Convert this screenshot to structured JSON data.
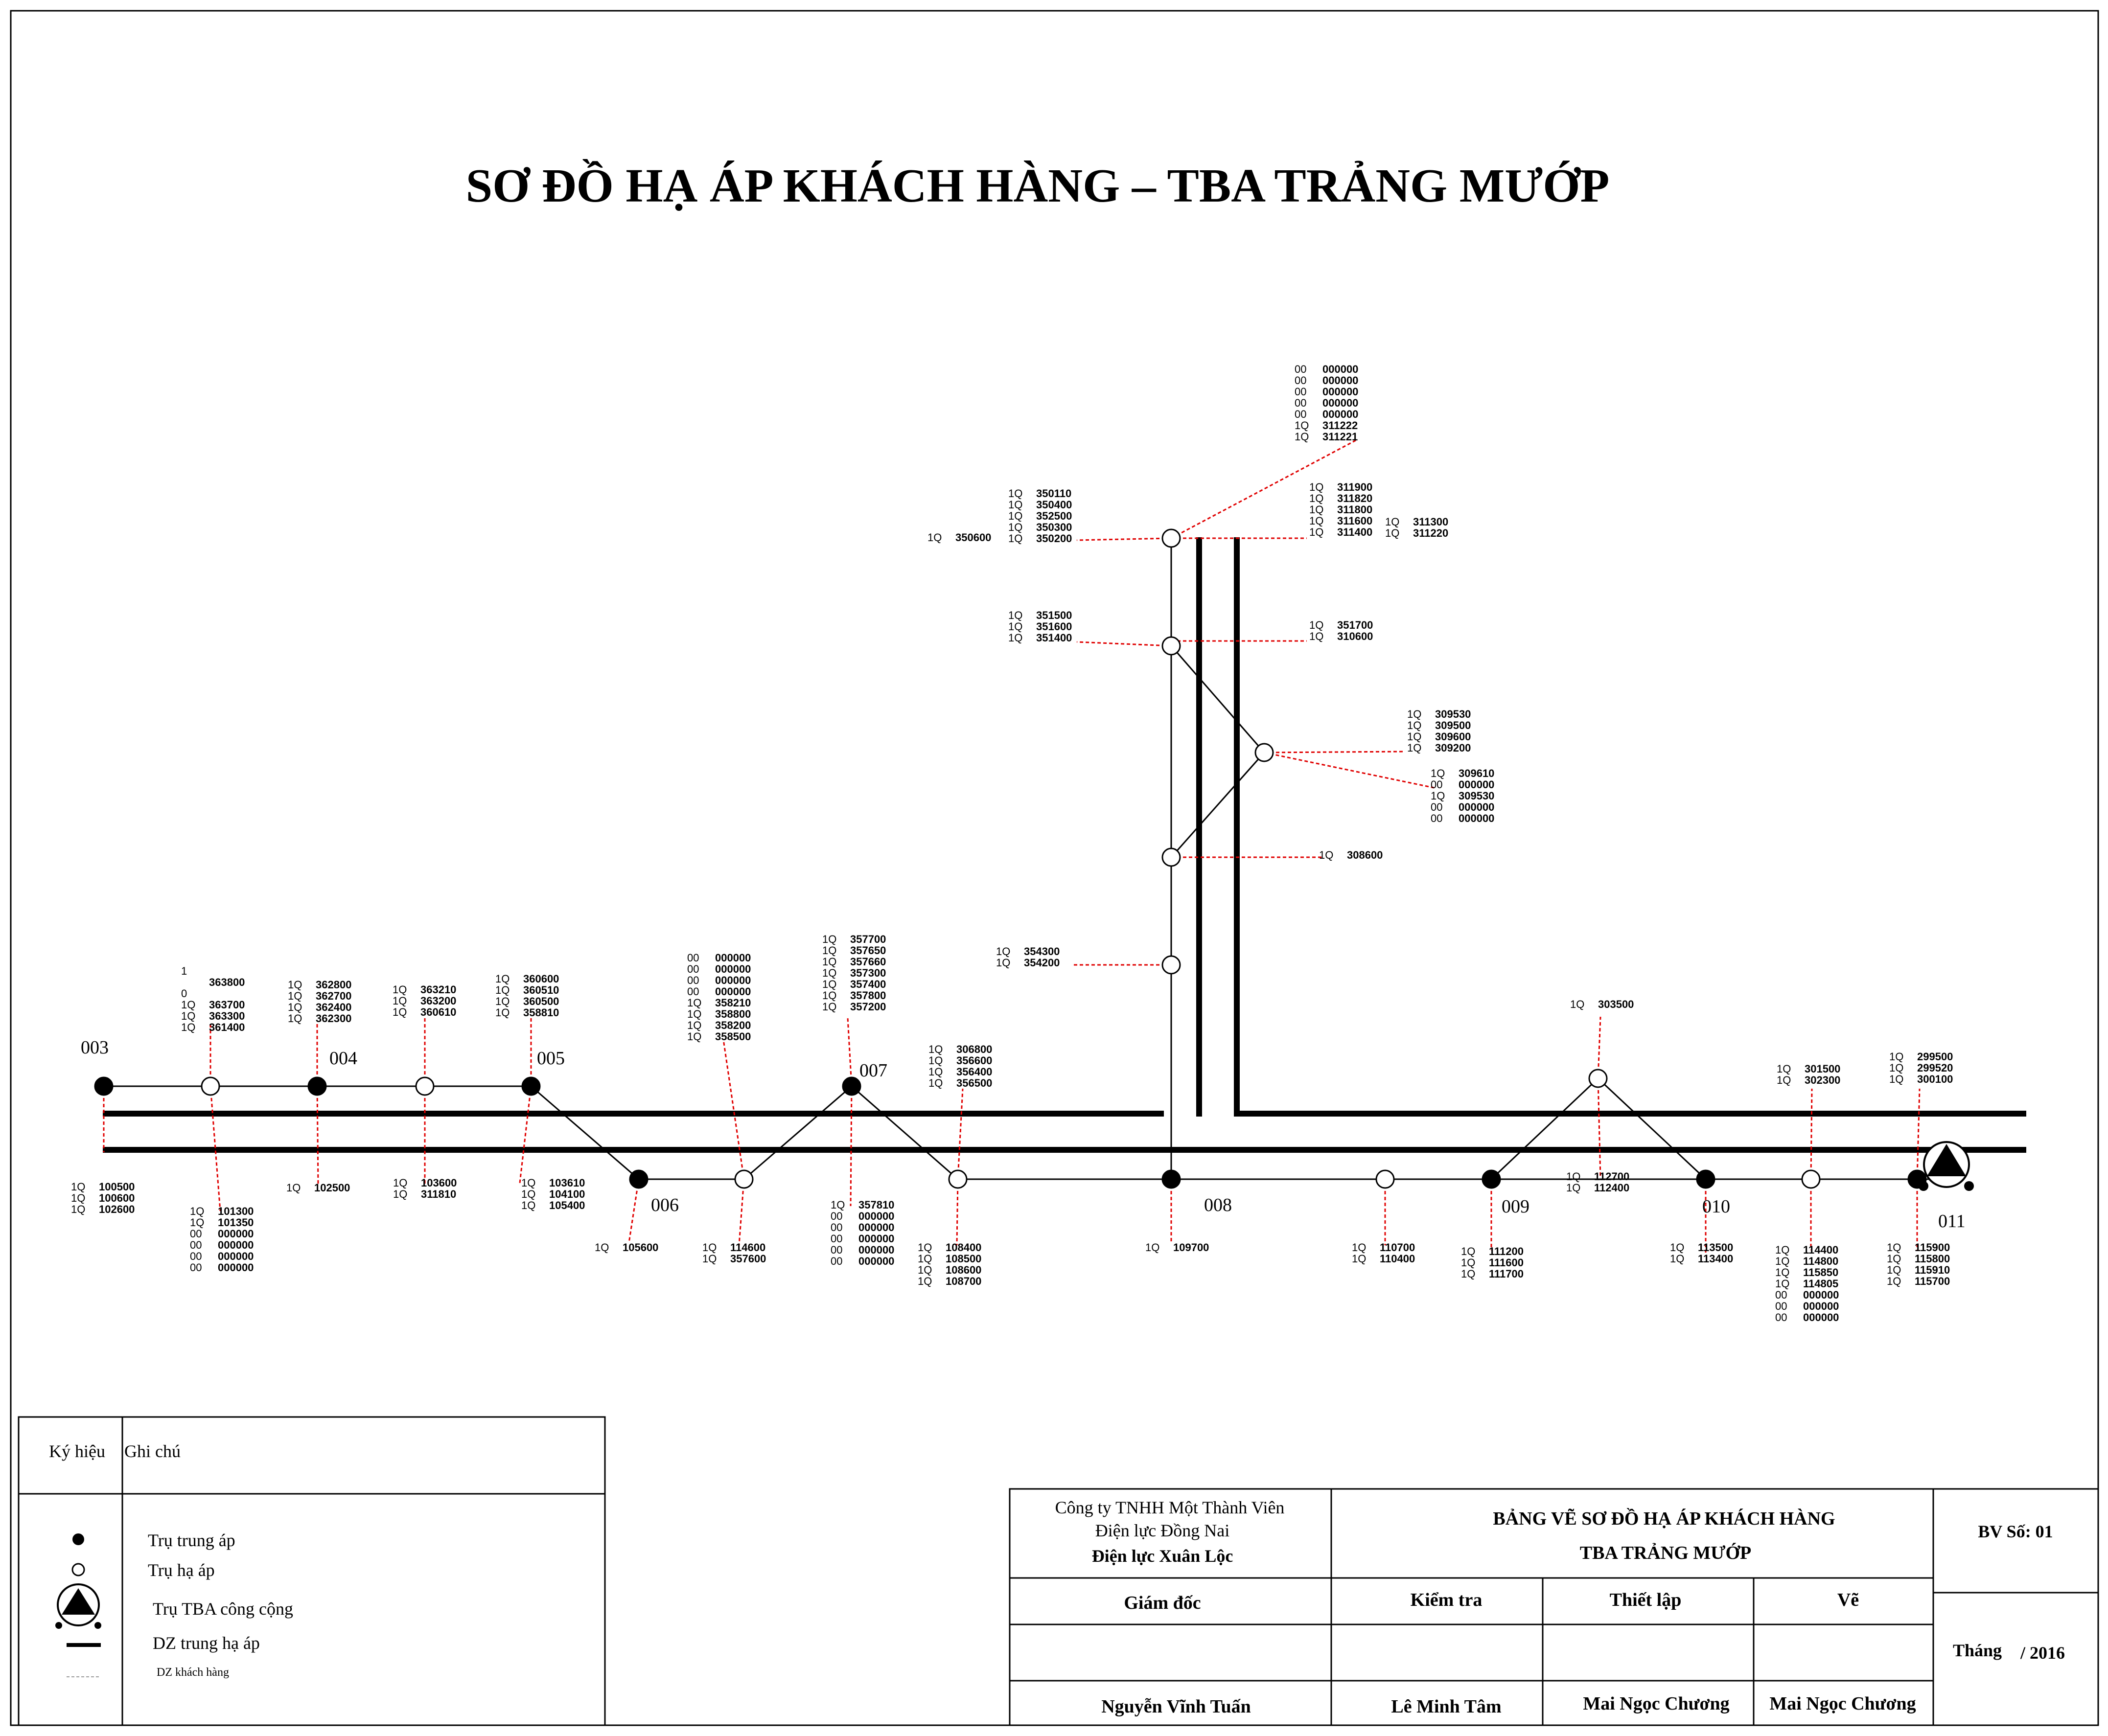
{
  "title": "SƠ ĐỒ HẠ ÁP KHÁCH HÀNG – TBA TRẢNG MƯỚP",
  "pole_labels": [
    "003",
    "004",
    "005",
    "006",
    "007",
    "008",
    "009",
    "010",
    "011"
  ],
  "customer_groups": [
    {
      "rows": [
        [
          "1",
          ""
        ],
        [
          "",
          "363800"
        ],
        [
          "0",
          ""
        ],
        [
          "1Q",
          "363700"
        ],
        [
          "1Q",
          "363300"
        ],
        [
          "1Q",
          "361400"
        ]
      ]
    },
    {
      "rows": [
        [
          "1Q",
          "362800"
        ],
        [
          "1Q",
          "362700"
        ],
        [
          "1Q",
          "362400"
        ],
        [
          "1Q",
          "362300"
        ]
      ]
    },
    {
      "rows": [
        [
          "1Q",
          "363210"
        ],
        [
          "1Q",
          "363200"
        ],
        [
          "1Q",
          "360610"
        ]
      ]
    },
    {
      "rows": [
        [
          "1Q",
          "360600"
        ],
        [
          "1Q",
          "360510"
        ],
        [
          "1Q",
          "360500"
        ],
        [
          "1Q",
          "358810"
        ]
      ]
    },
    {
      "rows": [
        [
          "00",
          "000000"
        ],
        [
          "00",
          "000000"
        ],
        [
          "00",
          "000000"
        ],
        [
          "00",
          "000000"
        ],
        [
          "1Q",
          "358210"
        ],
        [
          "1Q",
          "358800"
        ],
        [
          "1Q",
          "358200"
        ],
        [
          "1Q",
          "358500"
        ]
      ]
    },
    {
      "rows": [
        [
          "1Q",
          "357700"
        ],
        [
          "1Q",
          "357650"
        ],
        [
          "1Q",
          "357660"
        ],
        [
          "1Q",
          "357300"
        ],
        [
          "1Q",
          "357400"
        ],
        [
          "1Q",
          "357800"
        ],
        [
          "1Q",
          "357200"
        ]
      ]
    },
    {
      "rows": [
        [
          "1Q",
          "306800"
        ],
        [
          "1Q",
          "356600"
        ],
        [
          "1Q",
          "356400"
        ],
        [
          "1Q",
          "356500"
        ]
      ]
    },
    {
      "rows": [
        [
          "1Q",
          "354300"
        ],
        [
          "1Q",
          "354200"
        ]
      ]
    },
    {
      "rows": [
        [
          "1Q",
          "351500"
        ],
        [
          "1Q",
          "351600"
        ],
        [
          "1Q",
          "351400"
        ]
      ]
    },
    {
      "rows": [
        [
          "1Q",
          "350110"
        ],
        [
          "1Q",
          "350400"
        ],
        [
          "1Q",
          "352500"
        ],
        [
          "1Q",
          "350300"
        ],
        [
          "1Q",
          "350200"
        ]
      ]
    },
    {
      "rows": [
        [
          "1Q",
          "350600"
        ]
      ]
    },
    {
      "rows": [
        [
          "00",
          "000000"
        ],
        [
          "00",
          "000000"
        ],
        [
          "00",
          "000000"
        ],
        [
          "00",
          "000000"
        ],
        [
          "00",
          "000000"
        ],
        [
          "1Q",
          "311222"
        ],
        [
          "1Q",
          "311221"
        ]
      ]
    },
    {
      "rows": [
        [
          "1Q",
          "311900"
        ],
        [
          "1Q",
          "311820"
        ],
        [
          "1Q",
          "311800"
        ],
        [
          "1Q",
          "311600"
        ],
        [
          "1Q",
          "311400"
        ]
      ]
    },
    {
      "rows": [
        [
          "1Q",
          "311300"
        ],
        [
          "1Q",
          "311220"
        ]
      ]
    },
    {
      "rows": [
        [
          "1Q",
          "351700"
        ],
        [
          "1Q",
          "310600"
        ]
      ]
    },
    {
      "rows": [
        [
          "1Q",
          "309530"
        ],
        [
          "1Q",
          "309500"
        ],
        [
          "1Q",
          "309600"
        ],
        [
          "1Q",
          "309200"
        ]
      ]
    },
    {
      "rows": [
        [
          "1Q",
          "309610"
        ],
        [
          "00",
          "000000"
        ],
        [
          "1Q",
          "309530"
        ],
        [
          "00",
          "000000"
        ],
        [
          "00",
          "000000"
        ]
      ]
    },
    {
      "rows": [
        [
          "1Q",
          "308600"
        ]
      ]
    },
    {
      "rows": [
        [
          "1Q",
          "303500"
        ]
      ]
    },
    {
      "rows": [
        [
          "1Q",
          "301500"
        ],
        [
          "1Q",
          "302300"
        ]
      ]
    },
    {
      "rows": [
        [
          "1Q",
          "299500"
        ],
        [
          "1Q",
          "299520"
        ],
        [
          "1Q",
          "300100"
        ]
      ]
    },
    {
      "rows": [
        [
          "1Q",
          "100500"
        ],
        [
          "1Q",
          "100600"
        ],
        [
          "1Q",
          "102600"
        ]
      ]
    },
    {
      "rows": [
        [
          "1Q",
          "101300"
        ],
        [
          "1Q",
          "101350"
        ],
        [
          "00",
          "000000"
        ],
        [
          "00",
          "000000"
        ],
        [
          "00",
          "000000"
        ],
        [
          "00",
          "000000"
        ]
      ]
    },
    {
      "rows": [
        [
          "1Q",
          "102500"
        ]
      ]
    },
    {
      "rows": [
        [
          "1Q",
          "103600"
        ],
        [
          "1Q",
          "311810"
        ]
      ]
    },
    {
      "rows": [
        [
          "1Q",
          "103610"
        ],
        [
          "1Q",
          "104100"
        ],
        [
          "1Q",
          "105400"
        ]
      ]
    },
    {
      "rows": [
        [
          "1Q",
          "105600"
        ]
      ]
    },
    {
      "rows": [
        [
          "1Q",
          "114600"
        ],
        [
          "1Q",
          "357600"
        ]
      ]
    },
    {
      "rows": [
        [
          "1Q",
          "357810"
        ],
        [
          "00",
          "000000"
        ],
        [
          "00",
          "000000"
        ],
        [
          "00",
          "000000"
        ],
        [
          "00",
          "000000"
        ],
        [
          "00",
          "000000"
        ]
      ]
    },
    {
      "rows": [
        [
          "1Q",
          "108400"
        ],
        [
          "1Q",
          "108500"
        ],
        [
          "1Q",
          "108600"
        ],
        [
          "1Q",
          "108700"
        ]
      ]
    },
    {
      "rows": [
        [
          "1Q",
          "109700"
        ]
      ]
    },
    {
      "rows": [
        [
          "1Q",
          "110700"
        ],
        [
          "1Q",
          "110400"
        ]
      ]
    },
    {
      "rows": [
        [
          "1Q",
          "111200"
        ],
        [
          "1Q",
          "111600"
        ],
        [
          "1Q",
          "111700"
        ]
      ]
    },
    {
      "rows": [
        [
          "1Q",
          "112700"
        ],
        [
          "1Q",
          "112400"
        ]
      ]
    },
    {
      "rows": [
        [
          "1Q",
          "113500"
        ],
        [
          "1Q",
          "113400"
        ]
      ]
    },
    {
      "rows": [
        [
          "1Q",
          "114400"
        ],
        [
          "1Q",
          "114800"
        ],
        [
          "1Q",
          "115850"
        ],
        [
          "1Q",
          "114805"
        ],
        [
          "00",
          "000000"
        ],
        [
          "00",
          "000000"
        ],
        [
          "00",
          "000000"
        ]
      ]
    },
    {
      "rows": [
        [
          "1Q",
          "115900"
        ],
        [
          "1Q",
          "115800"
        ],
        [
          "1Q",
          "115910"
        ],
        [
          "1Q",
          "115700"
        ]
      ]
    }
  ],
  "legend": {
    "header_symbol": "Ký hiệu",
    "header_note": "Ghi chú",
    "items": [
      "Trụ trung áp",
      "Trụ hạ áp",
      "Trụ TBA công cộng",
      "DZ trung hạ áp",
      "DZ khách hàng"
    ]
  },
  "title_block": {
    "company_line1": "Công ty TNHH Một Thành Viên",
    "company_line2": "Điện lực Đồng Nai",
    "company_line3": "Điện lực Xuân Lộc",
    "drawing_line1": "BẢNG VẼ SƠ ĐỒ HẠ ÁP KHÁCH HÀNG",
    "drawing_line2": "TBA TRẢNG MƯỚP",
    "sheet_no": "BV Số: 01",
    "role_director": "Giám đốc",
    "role_check": "Kiểm tra",
    "role_setup": "Thiết lập",
    "role_draw": "Vẽ",
    "month_label": "Tháng",
    "year_label": "/ 2016",
    "name_director": "Nguyễn Vĩnh Tuấn",
    "name_check": "Lê Minh Tâm",
    "name_setup": "Mai Ngọc Chương",
    "name_draw": "Mai Ngọc Chương"
  },
  "colors": {
    "customer_line": "#e00000",
    "line": "#000000"
  }
}
